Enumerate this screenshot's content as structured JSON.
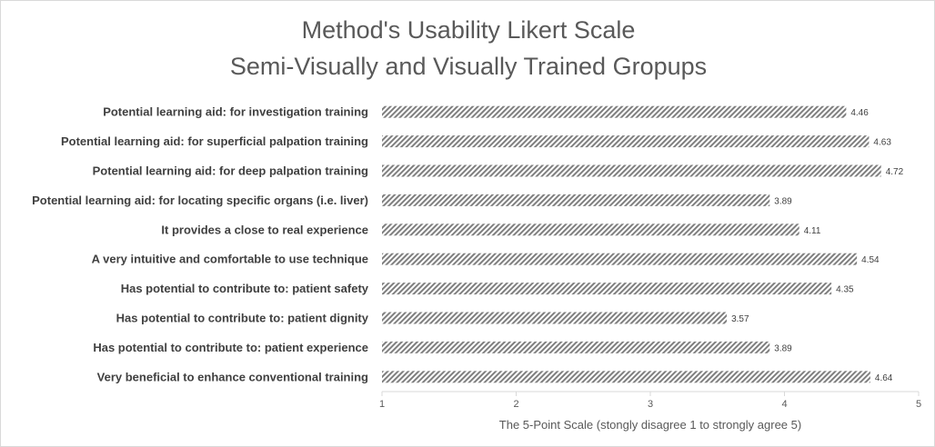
{
  "chart_data": {
    "type": "bar",
    "orientation": "horizontal",
    "title": [
      "Method's Usability Likert Scale",
      "Semi-Visually and Visually Trained Gropups"
    ],
    "categories": [
      "Potential learning aid: for investigation training",
      "Potential learning aid: for superficial palpation training",
      "Potential learning aid: for deep palpation training",
      "Potential learning aid: for locating specific organs (i.e. liver)",
      "It provides a close to real experience ",
      "A very intuitive and comfortable to use technique",
      "Has potential to contribute to: patient safety",
      "Has potential to contribute to: patient dignity",
      "Has potential to contribute to: patient experience",
      "Very beneficial to enhance conventional training"
    ],
    "values": [
      4.46,
      4.63,
      4.72,
      3.89,
      4.11,
      4.54,
      4.35,
      3.57,
      3.89,
      4.64
    ],
    "xlabel": "The 5-Point Scale (stongly disagree 1 to strongly agree 5)",
    "ylabel": "",
    "xlim": [
      1,
      5
    ],
    "xticks": [
      1,
      2,
      3,
      4,
      5
    ],
    "grid": false,
    "legend": "none",
    "bar_fill": "diagonal-hatch",
    "colors": {
      "bar_pattern": "#7f7f7f",
      "bar_background": "#ffffff",
      "axis": "#d9d9d9",
      "text": "#595959"
    }
  }
}
